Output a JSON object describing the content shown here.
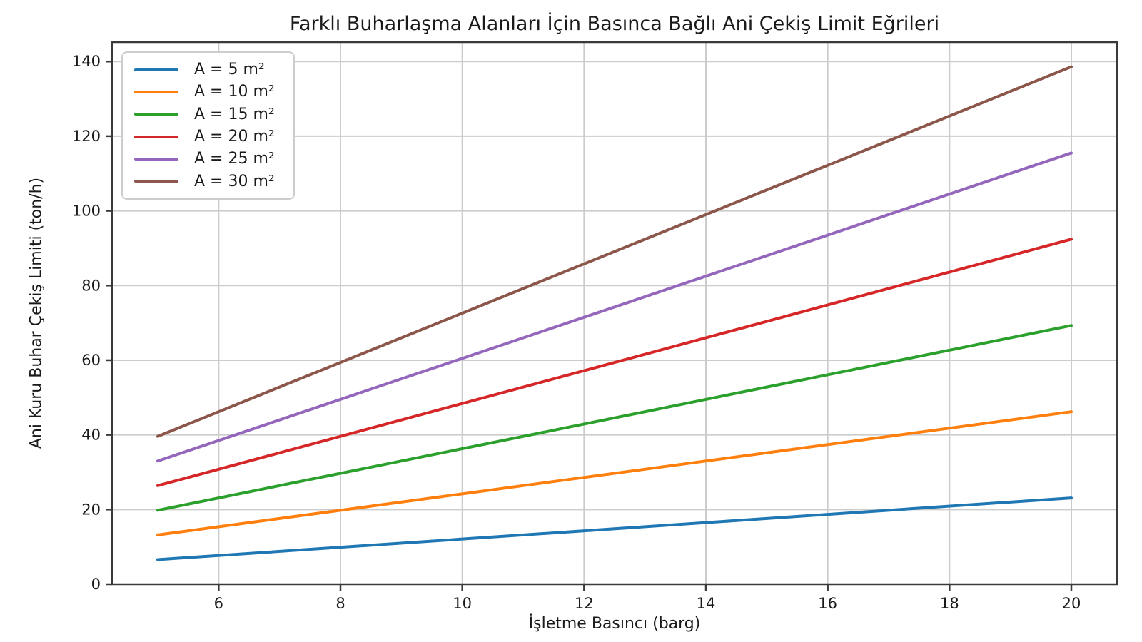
{
  "chart_data": {
    "type": "line",
    "title": "Farklı Buharlaşma Alanları İçin Basınca Bağlı Ani Çekiş Limit Eğrileri",
    "xlabel": "İşletme Basıncı (barg)",
    "ylabel": "Ani Kuru Buhar Çekiş Limiti (ton/h)",
    "x": [
      5,
      10,
      15,
      20
    ],
    "series": [
      {
        "name": "A = 5 m²",
        "color": "#1f77b4",
        "values": [
          6.6,
          12.1,
          17.6,
          23.1
        ]
      },
      {
        "name": "A = 10 m²",
        "color": "#ff7f0e",
        "values": [
          13.2,
          24.2,
          35.2,
          46.2
        ]
      },
      {
        "name": "A = 15 m²",
        "color": "#2ca02c",
        "values": [
          19.8,
          36.3,
          52.8,
          69.3
        ]
      },
      {
        "name": "A = 20 m²",
        "color": "#d62728",
        "values": [
          26.4,
          48.4,
          70.4,
          92.4
        ]
      },
      {
        "name": "A = 25 m²",
        "color": "#9467bd",
        "values": [
          33.0,
          60.5,
          88.0,
          115.5
        ]
      },
      {
        "name": "A = 30 m²",
        "color": "#8c564b",
        "values": [
          39.6,
          72.6,
          105.6,
          138.6
        ]
      }
    ],
    "xticks": [
      6,
      8,
      10,
      12,
      14,
      16,
      18,
      20
    ],
    "yticks": [
      0,
      20,
      40,
      60,
      80,
      100,
      120,
      140
    ],
    "xlim": [
      4.25,
      20.75
    ],
    "ylim": [
      0,
      145.2
    ],
    "grid": true,
    "legend_position": "upper left",
    "grid_color": "#cccccc",
    "spine_color": "#3a3a3a",
    "text_color": "#1a1a1a",
    "background_color": "#ffffff"
  }
}
